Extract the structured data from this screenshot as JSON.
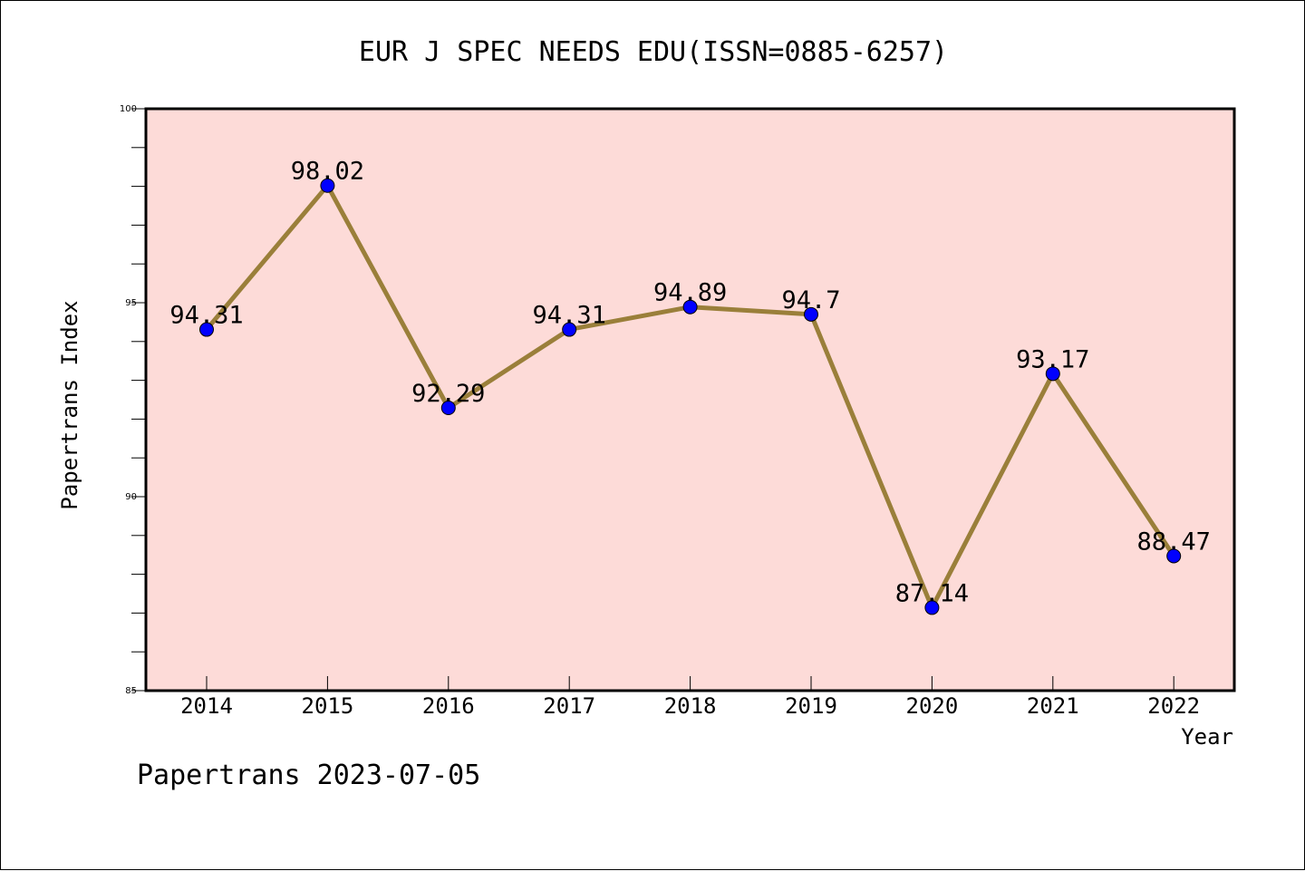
{
  "chart_data": {
    "type": "line",
    "title": "EUR J SPEC NEEDS EDU(ISSN=0885-6257)",
    "xlabel": "Year",
    "ylabel": "Papertrans Index",
    "categories": [
      "2014",
      "2015",
      "2016",
      "2017",
      "2018",
      "2019",
      "2020",
      "2021",
      "2022"
    ],
    "series": [
      {
        "values": [
          94.31,
          98.02,
          92.29,
          94.31,
          94.89,
          94.7,
          87.14,
          93.17,
          88.47
        ]
      }
    ],
    "data_labels": [
      "94.31",
      "98.02",
      "92.29",
      "94.31",
      "94.89",
      "94.7",
      "87.14",
      "93.17",
      "88.47"
    ],
    "ylim": [
      85,
      100
    ],
    "y_ticks": [
      "85",
      "90",
      "95",
      "100"
    ],
    "grid": false,
    "legend": "none",
    "colors": {
      "plot_background": "#fddbd8",
      "line": "#9a7f3a",
      "marker": "#0000ff"
    }
  },
  "footer": {
    "text": "Papertrans 2023-07-05"
  }
}
